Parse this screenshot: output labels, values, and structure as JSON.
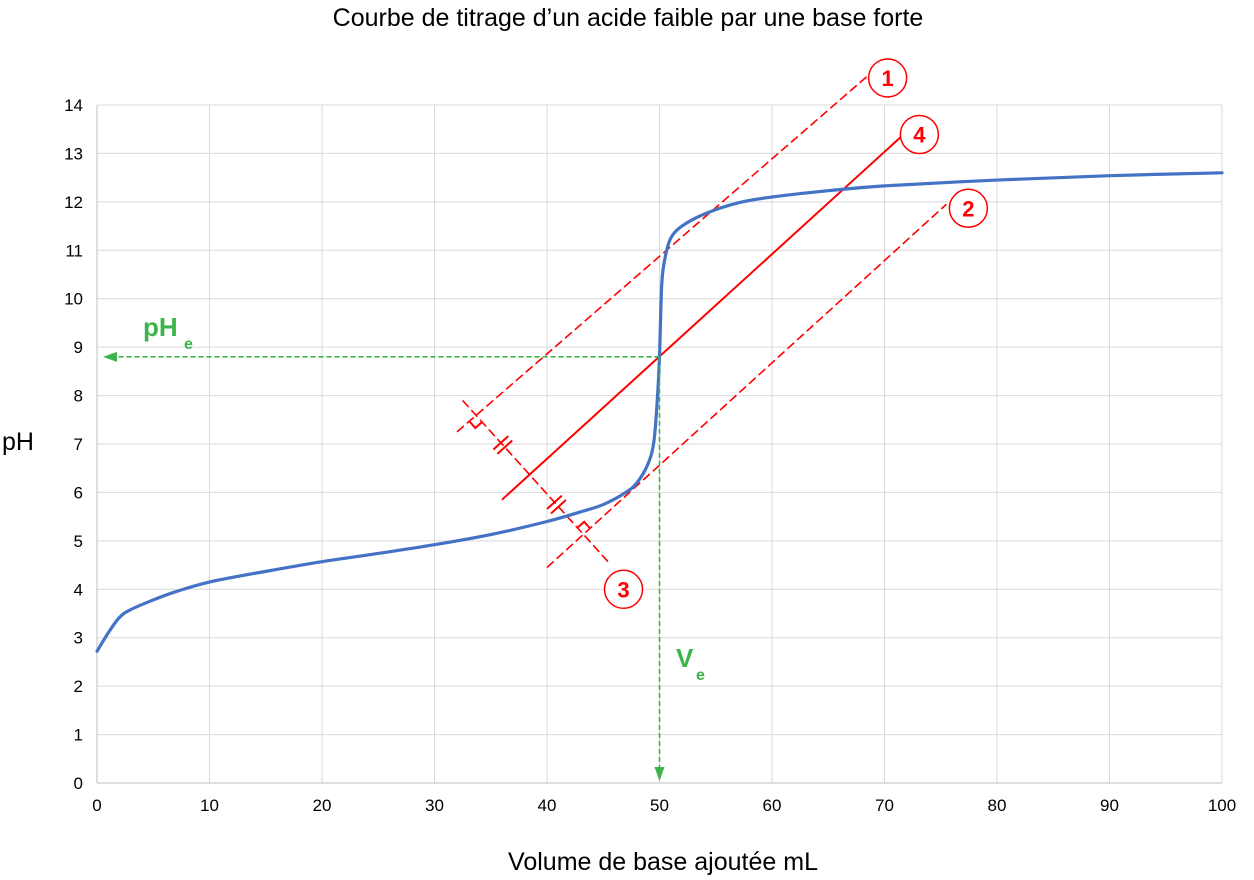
{
  "chart_data": {
    "type": "line",
    "title": "Courbe de titrage d’un acide faible par une base forte",
    "xlabel": "Volume de base ajoutée mL",
    "ylabel": "pH",
    "xlim": [
      0,
      100
    ],
    "ylim": [
      0,
      14
    ],
    "x_ticks": [
      0,
      10,
      20,
      30,
      40,
      50,
      60,
      70,
      80,
      90,
      100
    ],
    "y_ticks": [
      0,
      1,
      2,
      3,
      4,
      5,
      6,
      7,
      8,
      9,
      10,
      11,
      12,
      13,
      14
    ],
    "grid": true,
    "legend": "none",
    "curve_color": "#4472c4",
    "series": [
      {
        "x": [
          0,
          1,
          2,
          3,
          5,
          7,
          10,
          15,
          20,
          25,
          30,
          35,
          40,
          43,
          45,
          47,
          48,
          49,
          49.5,
          49.8,
          50,
          50.2,
          50.5,
          51,
          52,
          54,
          57,
          60,
          65,
          70,
          80,
          90,
          100
        ],
        "y": [
          2.72,
          3.1,
          3.42,
          3.58,
          3.78,
          3.95,
          4.15,
          4.37,
          4.57,
          4.74,
          4.92,
          5.13,
          5.4,
          5.6,
          5.75,
          6.0,
          6.2,
          6.6,
          7.05,
          7.9,
          8.8,
          10.3,
          10.85,
          11.25,
          11.5,
          11.75,
          11.98,
          12.1,
          12.23,
          12.33,
          12.45,
          12.54,
          12.6
        ]
      }
    ],
    "annotations": {
      "tangent_1": {
        "label": "1",
        "from": [
          32,
          7.25
        ],
        "to": [
          68.5,
          14.6
        ]
      },
      "tangent_2": {
        "label": "2",
        "from": [
          40,
          4.45
        ],
        "to": [
          75.5,
          11.95
        ]
      },
      "parallel_4": {
        "label": "4",
        "from": [
          36,
          5.85
        ],
        "to": [
          71.5,
          13.35
        ]
      },
      "perpendicular_3": {
        "label": "3",
        "from": [
          32.5,
          7.9
        ],
        "to": [
          45.5,
          4.55
        ],
        "label_pos": [
          46.8,
          4.0
        ]
      },
      "equivalence": {
        "Ve": 50,
        "pHe": 8.8
      },
      "pHe_label": "pH",
      "pHe_sub": "e",
      "Ve_label": "V",
      "Ve_sub": "e",
      "color_construction": "#ff0000",
      "color_equivalence": "#3cb44b"
    }
  }
}
